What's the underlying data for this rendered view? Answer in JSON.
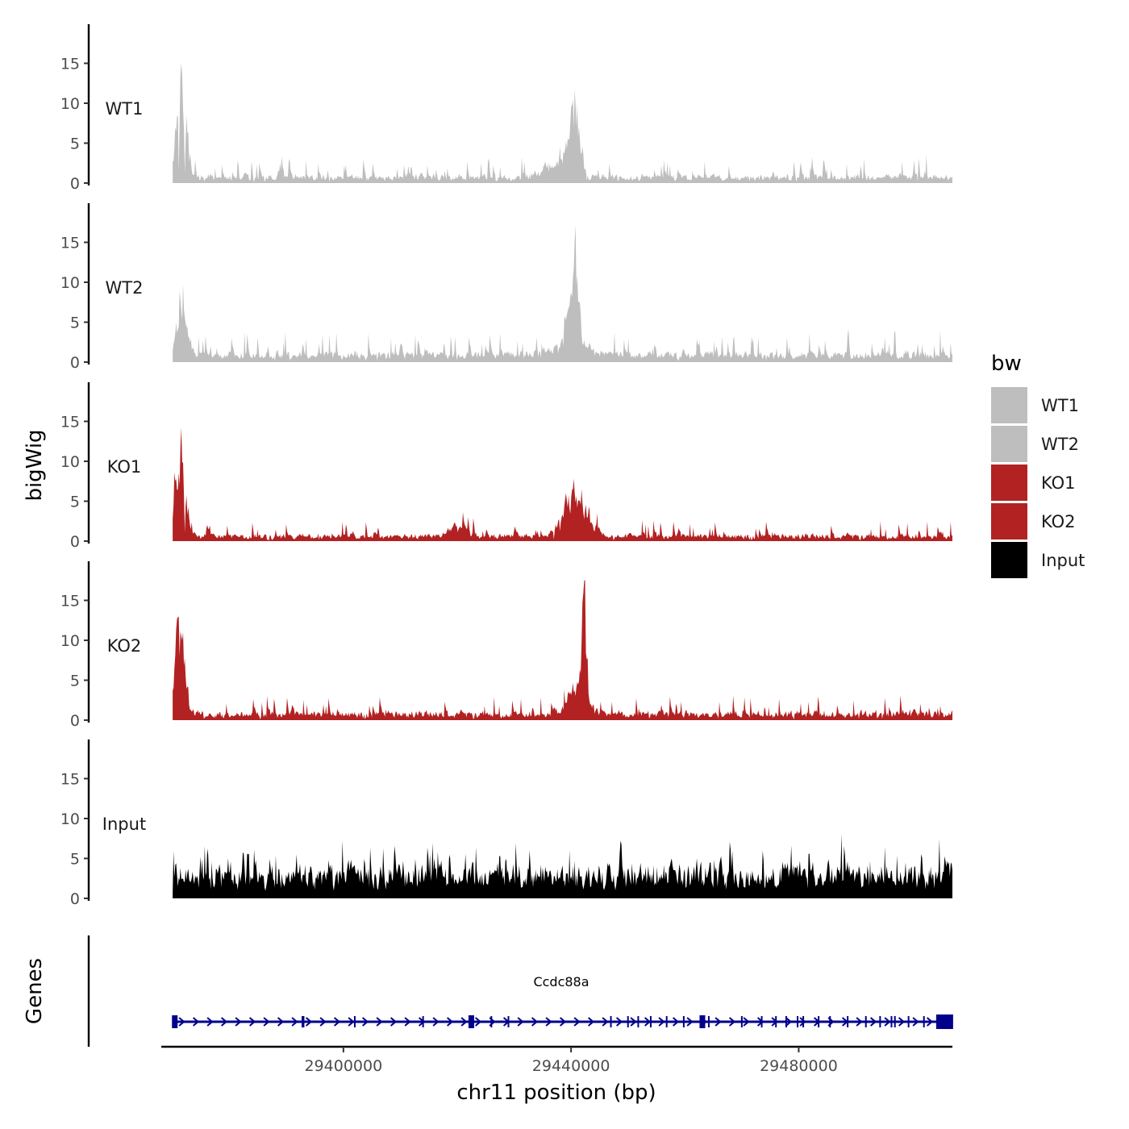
{
  "chart_data": {
    "type": "area",
    "chromosome": "chr11",
    "xlabel": "chr11 position (bp)",
    "ylabel": "bigWig",
    "genes_label": "Genes",
    "xlim": [
      29368000,
      29507000
    ],
    "x_ticks": [
      29400000,
      29440000,
      29480000
    ],
    "x_tick_labels": [
      "29400000",
      "29440000",
      "29480000"
    ],
    "ylim": [
      0,
      19.5
    ],
    "y_ticks": [
      0,
      5,
      10,
      15
    ],
    "y_tick_labels": [
      "0",
      "5",
      "10",
      "15"
    ],
    "legend": {
      "title": "bw",
      "entries": [
        {
          "label": "WT1",
          "color": "#bebebe"
        },
        {
          "label": "WT2",
          "color": "#bebebe"
        },
        {
          "label": "KO1",
          "color": "#b22222"
        },
        {
          "label": "KO2",
          "color": "#b22222"
        },
        {
          "label": "Input",
          "color": "#000000"
        }
      ]
    },
    "series": [
      {
        "name": "WT1",
        "color": "#bebebe",
        "baseline": 1.0,
        "noise": 4.5,
        "spike": 0.1,
        "peaks": [
          [
            29371500,
            1200,
            16.5
          ],
          [
            29440500,
            1200,
            12.5
          ],
          [
            29437500,
            3500,
            2.5
          ]
        ]
      },
      {
        "name": "WT2",
        "color": "#bebebe",
        "baseline": 1.3,
        "noise": 5.0,
        "spike": 0.11,
        "peaks": [
          [
            29371500,
            1300,
            10.0
          ],
          [
            29440500,
            900,
            14.0
          ],
          [
            29440000,
            3200,
            3.5
          ]
        ]
      },
      {
        "name": "KO1",
        "color": "#b22222",
        "baseline": 0.9,
        "noise": 3.5,
        "spike": 0.09,
        "peaks": [
          [
            29371200,
            1300,
            15.5
          ],
          [
            29440800,
            2800,
            7.5
          ],
          [
            29420000,
            2500,
            1.5
          ]
        ]
      },
      {
        "name": "KO2",
        "color": "#b22222",
        "baseline": 1.1,
        "noise": 4.0,
        "spike": 0.09,
        "peaks": [
          [
            29371200,
            1200,
            15.0
          ],
          [
            29442200,
            500,
            18.0
          ],
          [
            29441000,
            2200,
            4.5
          ]
        ]
      },
      {
        "name": "Input",
        "color": "#000000",
        "baseline": 4.0,
        "noise": 7.0,
        "spike": 0.12,
        "peaks": []
      }
    ],
    "genes": [
      {
        "name": "Ccdc88a",
        "start": 29370000,
        "end": 29507000,
        "strand": "+",
        "color": "#00008b",
        "exons": [
          29370300,
          29392800,
          29392900,
          29393000,
          29402000,
          29414000,
          29422400,
          29426000,
          29429000,
          29447000,
          29450000,
          29451800,
          29454000,
          29456800,
          29459800,
          29463000,
          29464200,
          29470000,
          29473500,
          29476000,
          29477800,
          29479800,
          29480800,
          29483500,
          29485500,
          29488600,
          29491800,
          29494300,
          29496300,
          29496900,
          29499300,
          29502000
        ]
      }
    ]
  }
}
